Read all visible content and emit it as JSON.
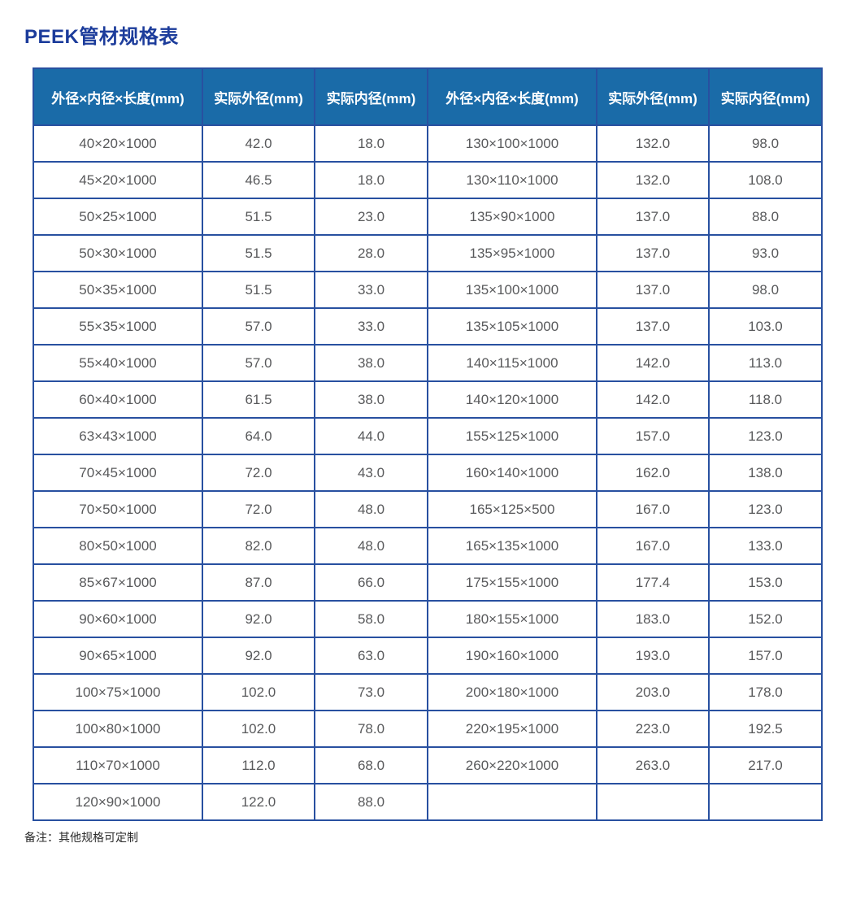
{
  "page": {
    "title": "PEEK管材规格表",
    "note": "备注：其他规格可定制"
  },
  "colors": {
    "title": "#1C3C9B",
    "header_bg": "#1A6BA8",
    "border": "#2850A0",
    "cell_text": "#58595B"
  },
  "table": {
    "headers": [
      "外径×内径×长度(mm)",
      "实际外径(mm)",
      "实际内径(mm)",
      "外径×内径×长度(mm)",
      "实际外径(mm)",
      "实际内径(mm)"
    ],
    "rows": [
      [
        "40×20×1000",
        "42.0",
        "18.0",
        "130×100×1000",
        "132.0",
        "98.0"
      ],
      [
        "45×20×1000",
        "46.5",
        "18.0",
        "130×110×1000",
        "132.0",
        "108.0"
      ],
      [
        "50×25×1000",
        "51.5",
        "23.0",
        "135×90×1000",
        "137.0",
        "88.0"
      ],
      [
        "50×30×1000",
        "51.5",
        "28.0",
        "135×95×1000",
        "137.0",
        "93.0"
      ],
      [
        "50×35×1000",
        "51.5",
        "33.0",
        "135×100×1000",
        "137.0",
        "98.0"
      ],
      [
        "55×35×1000",
        "57.0",
        "33.0",
        "135×105×1000",
        "137.0",
        "103.0"
      ],
      [
        "55×40×1000",
        "57.0",
        "38.0",
        "140×115×1000",
        "142.0",
        "113.0"
      ],
      [
        "60×40×1000",
        "61.5",
        "38.0",
        "140×120×1000",
        "142.0",
        "118.0"
      ],
      [
        "63×43×1000",
        "64.0",
        "44.0",
        "155×125×1000",
        "157.0",
        "123.0"
      ],
      [
        "70×45×1000",
        "72.0",
        "43.0",
        "160×140×1000",
        "162.0",
        "138.0"
      ],
      [
        "70×50×1000",
        "72.0",
        "48.0",
        "165×125×500",
        "167.0",
        "123.0"
      ],
      [
        "80×50×1000",
        "82.0",
        "48.0",
        "165×135×1000",
        "167.0",
        "133.0"
      ],
      [
        "85×67×1000",
        "87.0",
        "66.0",
        "175×155×1000",
        "177.4",
        "153.0"
      ],
      [
        "90×60×1000",
        "92.0",
        "58.0",
        "180×155×1000",
        "183.0",
        "152.0"
      ],
      [
        "90×65×1000",
        "92.0",
        "63.0",
        "190×160×1000",
        "193.0",
        "157.0"
      ],
      [
        "100×75×1000",
        "102.0",
        "73.0",
        "200×180×1000",
        "203.0",
        "178.0"
      ],
      [
        "100×80×1000",
        "102.0",
        "78.0",
        "220×195×1000",
        "223.0",
        "192.5"
      ],
      [
        "110×70×1000",
        "112.0",
        "68.0",
        "260×220×1000",
        "263.0",
        "217.0"
      ],
      [
        "120×90×1000",
        "122.0",
        "88.0",
        "",
        "",
        ""
      ]
    ]
  }
}
